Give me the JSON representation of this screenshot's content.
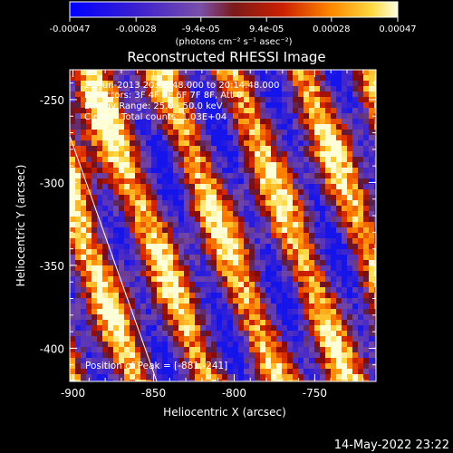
{
  "colorbar": {
    "ticks": [
      "-0.00047",
      "-0.00028",
      "-9.4e-05",
      "9.4e-05",
      "0.00028",
      "0.00047"
    ],
    "unit_label": "(photons cm⁻² s⁻¹ asec⁻²)",
    "range": [
      -0.00047,
      0.00047
    ]
  },
  "chart_data": {
    "type": "heatmap",
    "title": "Reconstructed RHESSI Image",
    "xlabel": "Heliocentric X (arcsec)",
    "ylabel": "Heliocentric Y (arcsec)",
    "xlim": [
      -902,
      -712
    ],
    "ylim": [
      -420,
      -232
    ],
    "xticks": [
      -900,
      -850,
      -800,
      -750
    ],
    "yticks": [
      -250,
      -300,
      -350,
      -400
    ],
    "xtick_labels": [
      "-900",
      "-850",
      "-800",
      "-750"
    ],
    "ytick_labels": [
      "-250",
      "-300",
      "-350",
      "-400"
    ],
    "annotations": [
      "23-Jun-2013 20:08:48.000 to 20:14:48.000",
      "Detectors: 3F 4F 5F 6F 7F 8F, Att 0",
      "Energy Range: 25.0 - 50.0 keV",
      "Clean    Total counts: 1.03E+04"
    ],
    "peak_label": "Position of Peak = [-881,-241]",
    "peak": [
      -881,
      -241
    ],
    "limb_line": [
      [
        -902,
        -272
      ],
      [
        -848,
        -420
      ]
    ],
    "colormap": "rainbow-to-hot"
  },
  "footer": {
    "date": "14-May-2022 23:22"
  }
}
